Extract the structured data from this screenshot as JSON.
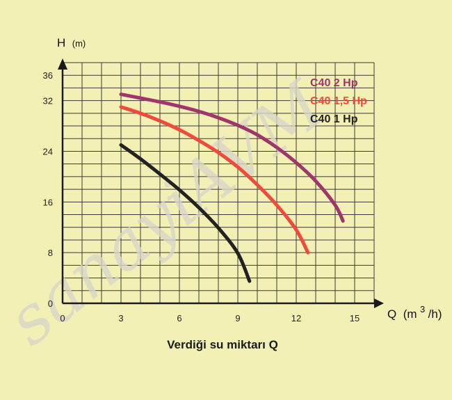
{
  "chart_data": {
    "type": "line",
    "ylabel": "H",
    "ylabel_unit": "(m)",
    "xlabel": "Q",
    "xlabel_unit_open": "(m",
    "xlabel_unit_sup": "3",
    "xlabel_unit_close": "/h)",
    "caption": "Verdiği su miktarı Q",
    "watermark": "sanayiAVM",
    "xlim": [
      0,
      16
    ],
    "ylim": [
      0,
      38
    ],
    "x_ticks": [
      0,
      3,
      6,
      9,
      12,
      15
    ],
    "y_ticks": [
      0,
      8,
      16,
      24,
      32,
      36
    ],
    "grid": true,
    "legend_position": "top-right",
    "series": [
      {
        "name": "C40 2 Hp",
        "color": "#a0356c",
        "x": [
          3,
          4,
          5,
          6,
          7,
          8,
          9,
          10,
          11,
          12,
          13,
          14,
          14.4
        ],
        "y": [
          33,
          32.4,
          31.8,
          31.1,
          30.3,
          29.3,
          28.1,
          26.6,
          24.6,
          22.2,
          19.3,
          15.5,
          13
        ]
      },
      {
        "name": "C40 1,5 Hp",
        "color": "#f04a3c",
        "x": [
          3,
          4,
          5,
          6,
          7,
          8,
          9,
          10,
          11,
          12,
          12.6
        ],
        "y": [
          31,
          30,
          28.8,
          27.4,
          25.7,
          23.8,
          21.5,
          18.7,
          15.5,
          11.6,
          8
        ]
      },
      {
        "name": "C40 1 Hp",
        "color": "#222222",
        "x": [
          3,
          4,
          5,
          6,
          7,
          8,
          9,
          9.6
        ],
        "y": [
          25,
          22.8,
          20.4,
          17.9,
          15.1,
          11.9,
          7.9,
          3.5
        ]
      }
    ]
  }
}
